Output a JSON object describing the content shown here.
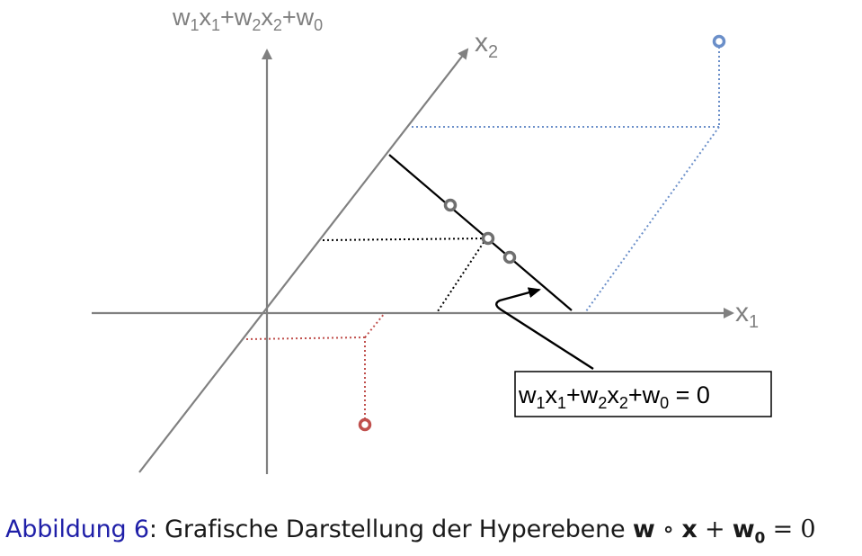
{
  "diagram": {
    "vertical_axis_label": {
      "main": "w",
      "s1": "1",
      "m1": "x",
      "s2": "1",
      "m2": "+w",
      "s3": "2",
      "m3": "x",
      "s4": "2",
      "m4": "+w",
      "s5": "0"
    },
    "x1_label": {
      "main": "x",
      "sub": "1"
    },
    "x2_label": {
      "main": "x",
      "sub": "2"
    },
    "hyperplane_box": {
      "main": "w",
      "s1": "1",
      "m1": "x",
      "s2": "1",
      "m2": "+w",
      "s3": "2",
      "m3": "x",
      "s4": "2",
      "m4": "+w",
      "s5": "0",
      "tail": " = 0"
    },
    "colors": {
      "axis": "#808080",
      "hyperplane": "#000000",
      "point_on_plane": "#6f6f6f",
      "positive_point": "#6b8fc9",
      "negative_point": "#c0504d"
    }
  },
  "caption": {
    "prefix": "Abbildung 6",
    "colon": ":",
    "text": " Grafische Darstellung der Hyperebene ",
    "formula": {
      "w": "w",
      "circ": " ∘ ",
      "x": "x",
      "plus": " + ",
      "w0": "w",
      "w0_sub": "0",
      "eq": " = 0"
    }
  }
}
